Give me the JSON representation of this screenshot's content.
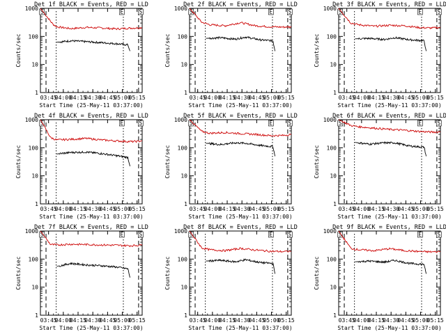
{
  "chart_data": [
    {
      "type": "line",
      "title": "Det 1f BLACK = Events, RED = LLD",
      "xlabel": "Start Time (25-May-11 03:37:00)",
      "ylabel": "Counts/sec",
      "yscale": "log",
      "ylim": [
        1,
        1000
      ],
      "y_tick_labels": [
        "1",
        "10",
        "100",
        "1000"
      ],
      "x_tick_labels": [
        "03:45",
        "04:00",
        "04:15",
        "04:30",
        "04:45",
        "05:00",
        "05:15"
      ],
      "flag_labels": [
        "S",
        "E",
        "S"
      ],
      "series": [
        {
          "name": "RED = LLD",
          "color": "#cc0000",
          "x": [
            0,
            0.12,
            0.16,
            0.3,
            0.45,
            0.6,
            0.75,
            0.85,
            0.92,
            1.0
          ],
          "values": [
            1000,
            280,
            220,
            190,
            210,
            200,
            185,
            195,
            200,
            205
          ]
        },
        {
          "name": "BLACK = Events",
          "color": "#000000",
          "x": [
            0.16,
            0.3,
            0.45,
            0.6,
            0.75,
            0.86,
            0.88
          ],
          "values": [
            62,
            70,
            65,
            60,
            55,
            50,
            30
          ]
        }
      ]
    },
    {
      "type": "line",
      "title": "Det 2f BLACK = Events, RED = LLD",
      "xlabel": "Start Time (25-May-11 03:37:00)",
      "ylabel": "Counts/sec",
      "yscale": "log",
      "ylim": [
        1,
        1000
      ],
      "y_tick_labels": [
        "1",
        "10",
        "100",
        "1000"
      ],
      "x_tick_labels": [
        "03:45",
        "04:00",
        "04:15",
        "04:30",
        "04:45",
        "05:00",
        "05:15"
      ],
      "flag_labels": [
        "S",
        "E",
        "S"
      ],
      "series": [
        {
          "name": "RED = LLD",
          "color": "#cc0000",
          "x": [
            0,
            0.12,
            0.2,
            0.35,
            0.5,
            0.65,
            0.8,
            0.92,
            1.0
          ],
          "values": [
            1000,
            320,
            260,
            240,
            310,
            240,
            220,
            215,
            220
          ]
        },
        {
          "name": "BLACK = Events",
          "color": "#000000",
          "x": [
            0.16,
            0.3,
            0.45,
            0.55,
            0.7,
            0.82,
            0.84
          ],
          "values": [
            85,
            90,
            80,
            95,
            75,
            70,
            30
          ]
        }
      ]
    },
    {
      "type": "line",
      "title": "Det 3f BLACK = Events, RED = LLD",
      "xlabel": "Start Time (25-May-11 03:37:00)",
      "ylabel": "Counts/sec",
      "yscale": "log",
      "ylim": [
        1,
        1000
      ],
      "y_tick_labels": [
        "1",
        "10",
        "100",
        "1000"
      ],
      "x_tick_labels": [
        "03:45",
        "04:00",
        "04:15",
        "04:30",
        "04:45",
        "05:00",
        "05:15"
      ],
      "flag_labels": [
        "S",
        "E",
        "S"
      ],
      "series": [
        {
          "name": "RED = LLD",
          "color": "#cc0000",
          "x": [
            0,
            0.12,
            0.2,
            0.35,
            0.5,
            0.65,
            0.8,
            0.92,
            1.0
          ],
          "values": [
            1000,
            300,
            260,
            230,
            250,
            240,
            205,
            200,
            210
          ]
        },
        {
          "name": "BLACK = Events",
          "color": "#000000",
          "x": [
            0.16,
            0.3,
            0.45,
            0.55,
            0.7,
            0.84,
            0.86
          ],
          "values": [
            82,
            85,
            78,
            90,
            76,
            70,
            30
          ]
        }
      ]
    },
    {
      "type": "line",
      "title": "Det 4f BLACK = Events, RED = LLD",
      "xlabel": "Start Time (25-May-11 03:37:00)",
      "ylabel": "Counts/sec",
      "yscale": "log",
      "ylim": [
        1,
        1000
      ],
      "y_tick_labels": [
        "1",
        "10",
        "100",
        "1000"
      ],
      "x_tick_labels": [
        "03:45",
        "04:00",
        "04:15",
        "04:30",
        "04:45",
        "05:00",
        "05:15"
      ],
      "flag_labels": [
        "S",
        "E",
        "S"
      ],
      "series": [
        {
          "name": "RED = LLD",
          "color": "#cc0000",
          "x": [
            0,
            0.1,
            0.16,
            0.3,
            0.45,
            0.6,
            0.75,
            0.9,
            1.0
          ],
          "values": [
            1000,
            230,
            190,
            200,
            215,
            190,
            175,
            165,
            175
          ]
        },
        {
          "name": "BLACK = Events",
          "color": "#000000",
          "x": [
            0.16,
            0.3,
            0.45,
            0.6,
            0.75,
            0.86,
            0.88
          ],
          "values": [
            60,
            68,
            70,
            62,
            52,
            45,
            22
          ]
        }
      ]
    },
    {
      "type": "line",
      "title": "Det 5f BLACK = Events, RED = LLD",
      "xlabel": "Start Time (25-May-11 03:37:00)",
      "ylabel": "Counts/sec",
      "yscale": "log",
      "ylim": [
        1,
        1000
      ],
      "y_tick_labels": [
        "1",
        "10",
        "100",
        "1000"
      ],
      "x_tick_labels": [
        "03:45",
        "04:00",
        "04:15",
        "04:30",
        "04:45",
        "05:00",
        "05:15"
      ],
      "flag_labels": [
        "S",
        "E",
        "S"
      ],
      "series": [
        {
          "name": "RED = LLD",
          "color": "#cc0000",
          "x": [
            0,
            0.12,
            0.2,
            0.35,
            0.5,
            0.65,
            0.8,
            0.92,
            1.0
          ],
          "values": [
            1000,
            380,
            330,
            350,
            320,
            300,
            270,
            275,
            300
          ]
        },
        {
          "name": "BLACK = Events",
          "color": "#000000",
          "x": [
            0.16,
            0.3,
            0.45,
            0.55,
            0.7,
            0.82,
            0.84
          ],
          "values": [
            145,
            130,
            150,
            145,
            120,
            110,
            50
          ]
        }
      ]
    },
    {
      "type": "line",
      "title": "Det 6f BLACK = Events, RED = LLD",
      "xlabel": "Start Time (25-May-11 03:37:00)",
      "ylabel": "Counts/sec",
      "yscale": "log",
      "ylim": [
        1,
        1000
      ],
      "y_tick_labels": [
        "1",
        "10",
        "100",
        "1000"
      ],
      "x_tick_labels": [
        "03:45",
        "04:00",
        "04:15",
        "04:30",
        "04:45",
        "05:00",
        "05:15"
      ],
      "flag_labels": [
        "S",
        "E",
        "S"
      ],
      "series": [
        {
          "name": "RED = LLD",
          "color": "#cc0000",
          "x": [
            0,
            0.12,
            0.2,
            0.35,
            0.5,
            0.65,
            0.8,
            0.92,
            1.0
          ],
          "values": [
            1000,
            620,
            560,
            500,
            450,
            420,
            380,
            360,
            370
          ]
        },
        {
          "name": "BLACK = Events",
          "color": "#000000",
          "x": [
            0.16,
            0.3,
            0.45,
            0.55,
            0.7,
            0.84,
            0.86
          ],
          "values": [
            155,
            135,
            150,
            150,
            115,
            105,
            50
          ]
        }
      ]
    },
    {
      "type": "line",
      "title": "Det 7f BLACK = Events, RED = LLD",
      "xlabel": "Start Time (25-May-11 03:37:00)",
      "ylabel": "Counts/sec",
      "yscale": "log",
      "ylim": [
        1,
        1000
      ],
      "y_tick_labels": [
        "1",
        "10",
        "100",
        "1000"
      ],
      "x_tick_labels": [
        "03:45",
        "04:00",
        "04:15",
        "04:30",
        "04:45",
        "05:00",
        "05:15"
      ],
      "flag_labels": [
        "S",
        "E",
        "S"
      ],
      "series": [
        {
          "name": "RED = LLD",
          "color": "#cc0000",
          "x": [
            0,
            0.1,
            0.16,
            0.3,
            0.45,
            0.6,
            0.75,
            0.9,
            1.0
          ],
          "values": [
            1000,
            330,
            320,
            340,
            330,
            320,
            310,
            300,
            320
          ]
        },
        {
          "name": "BLACK = Events",
          "color": "#000000",
          "x": [
            0.16,
            0.3,
            0.45,
            0.6,
            0.75,
            0.86,
            0.88
          ],
          "values": [
            55,
            70,
            62,
            58,
            52,
            45,
            22
          ]
        }
      ]
    },
    {
      "type": "line",
      "title": "Det 8f BLACK = Events, RED = LLD",
      "xlabel": "Start Time (25-May-11 03:37:00)",
      "ylabel": "Counts/sec",
      "yscale": "log",
      "ylim": [
        1,
        1000
      ],
      "y_tick_labels": [
        "1",
        "10",
        "100",
        "1000"
      ],
      "x_tick_labels": [
        "03:45",
        "04:00",
        "04:15",
        "04:30",
        "04:45",
        "05:00",
        "05:15"
      ],
      "flag_labels": [
        "S",
        "E",
        "S"
      ],
      "series": [
        {
          "name": "RED = LLD",
          "color": "#cc0000",
          "x": [
            0,
            0.12,
            0.2,
            0.35,
            0.5,
            0.65,
            0.8,
            0.92,
            1.0
          ],
          "values": [
            1000,
            250,
            215,
            200,
            240,
            210,
            190,
            185,
            190
          ]
        },
        {
          "name": "BLACK = Events",
          "color": "#000000",
          "x": [
            0.16,
            0.3,
            0.45,
            0.55,
            0.7,
            0.82,
            0.84
          ],
          "values": [
            85,
            90,
            80,
            95,
            75,
            70,
            30
          ]
        }
      ]
    },
    {
      "type": "line",
      "title": "Det 9f BLACK = Events, RED = LLD",
      "xlabel": "Start Time (25-May-11 03:37:00)",
      "ylabel": "Counts/sec",
      "yscale": "log",
      "ylim": [
        1,
        1000
      ],
      "y_tick_labels": [
        "1",
        "10",
        "100",
        "1000"
      ],
      "x_tick_labels": [
        "03:45",
        "04:00",
        "04:15",
        "04:30",
        "04:45",
        "05:00",
        "05:15"
      ],
      "flag_labels": [
        "S",
        "E",
        "S"
      ],
      "series": [
        {
          "name": "RED = LLD",
          "color": "#cc0000",
          "x": [
            0,
            0.12,
            0.2,
            0.35,
            0.5,
            0.65,
            0.8,
            0.92,
            1.0
          ],
          "values": [
            1000,
            240,
            215,
            200,
            235,
            200,
            185,
            180,
            185
          ]
        },
        {
          "name": "BLACK = Events",
          "color": "#000000",
          "x": [
            0.16,
            0.3,
            0.45,
            0.55,
            0.7,
            0.84,
            0.86
          ],
          "values": [
            80,
            85,
            78,
            90,
            70,
            65,
            30
          ]
        }
      ]
    }
  ]
}
